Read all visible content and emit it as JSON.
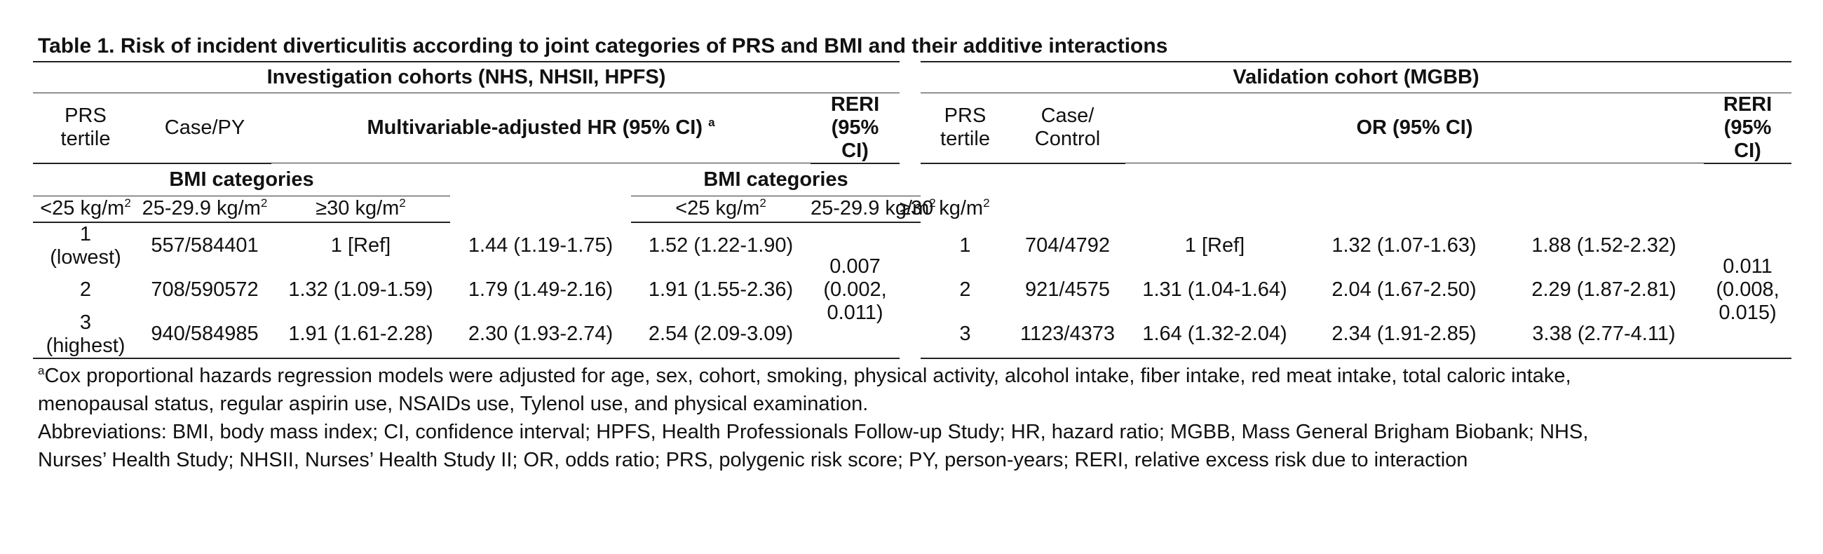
{
  "title": "Table 1. Risk of incident diverticulitis according to joint categories of PRS and BMI and their additive interactions",
  "investigation": {
    "header": "Investigation cohorts (NHS, NHSII, HPFS)",
    "col_prs_1": "PRS",
    "col_prs_2": "tertile",
    "col_case": "Case/PY",
    "measure": "Multivariable-adjusted HR (95% CI)",
    "measure_sup": "a",
    "bmi_header": "BMI categories",
    "bmi": [
      "<25 kg/m",
      "25-29.9 kg/m",
      "≥30 kg/m"
    ],
    "unit_sup": "2",
    "reri_1": "RERI",
    "reri_2": "(95%",
    "reri_3": "CI)",
    "rows": [
      {
        "prs_1": "1",
        "prs_2": "(lowest)",
        "case": "557/584401",
        "v1": "1 [Ref]",
        "v2": "1.44 (1.19-1.75)",
        "v3": "1.52 (1.22-1.90)"
      },
      {
        "prs_1": "2",
        "prs_2": "",
        "case": "708/590572",
        "v1": "1.32 (1.09-1.59)",
        "v2": "1.79 (1.49-2.16)",
        "v3": "1.91 (1.55-2.36)"
      },
      {
        "prs_1": "3",
        "prs_2": "(highest)",
        "case": "940/584985",
        "v1": "1.91 (1.61-2.28)",
        "v2": "2.30 (1.93-2.74)",
        "v3": "2.54 (2.09-3.09)"
      }
    ],
    "reri_value_1": "0.007",
    "reri_value_2": "(0.002,",
    "reri_value_3": "0.011)"
  },
  "validation": {
    "header": "Validation cohort (MGBB)",
    "col_prs_1": "PRS",
    "col_prs_2": "tertile",
    "col_case_1": "Case/",
    "col_case_2": "Control",
    "measure": "OR (95% CI)",
    "bmi_header": "BMI categories",
    "bmi": [
      "<25 kg/m",
      "25-29.9 kg/m",
      "≥30 kg/m"
    ],
    "unit_sup": "2",
    "reri_1": "RERI",
    "reri_2": "(95%",
    "reri_3": "CI)",
    "rows": [
      {
        "prs": "1",
        "case": "704/4792",
        "v1": "1 [Ref]",
        "v2": "1.32 (1.07-1.63)",
        "v3": "1.88 (1.52-2.32)"
      },
      {
        "prs": "2",
        "case": "921/4575",
        "v1": "1.31 (1.04-1.64)",
        "v2": "2.04 (1.67-2.50)",
        "v3": "2.29 (1.87-2.81)"
      },
      {
        "prs": "3",
        "case": "1123/4373",
        "v1": "1.64 (1.32-2.04)",
        "v2": "2.34 (1.91-2.85)",
        "v3": "3.38 (2.77-4.11)"
      }
    ],
    "reri_value_1": "0.011",
    "reri_value_2": "(0.008,",
    "reri_value_3": "0.015)"
  },
  "footnotes": {
    "a_marker": "a",
    "a_line1": "Cox proportional hazards regression models were adjusted for age, sex, cohort, smoking, physical activity, alcohol intake, fiber intake, red meat intake, total caloric intake,",
    "a_line2": "menopausal status, regular aspirin use, NSAIDs use, Tylenol use, and physical examination.",
    "abbr_line1": "Abbreviations: BMI, body mass index; CI, confidence interval; HPFS, Health Professionals Follow-up Study; HR, hazard ratio; MGBB, Mass General Brigham Biobank; NHS,",
    "abbr_line2": "Nurses’ Health Study; NHSII, Nurses’ Health Study II; OR, odds ratio; PRS, polygenic risk score; PY, person-years; RERI, relative excess risk due to interaction"
  }
}
